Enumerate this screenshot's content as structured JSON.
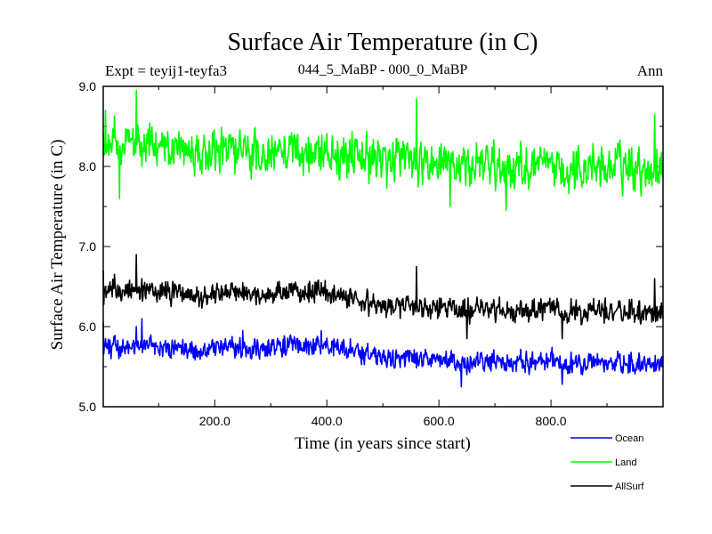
{
  "chart_data": {
    "type": "line",
    "title": "Surface Air Temperature (in C)",
    "subtitle_left": "Expt = teyij1-teyfa3",
    "subtitle_center": "044_5_MaBP - 000_0_MaBP",
    "subtitle_right": "Ann",
    "xlabel": "Time (in years since start)",
    "ylabel": "Surface Air Temperature (in C)",
    "xlim": [
      1,
      1000
    ],
    "ylim": [
      5.0,
      9.0
    ],
    "xticks": [
      200,
      400,
      600,
      800
    ],
    "xtick_labels": [
      "200.0",
      "400.0",
      "600.0",
      "800.0"
    ],
    "yticks": [
      5.0,
      6.0,
      7.0,
      8.0,
      9.0
    ],
    "ytick_labels": [
      "5.0",
      "6.0",
      "7.0",
      "8.0",
      "9.0"
    ],
    "grid": false,
    "legend_position": "bottom-right",
    "series": [
      {
        "name": "Ocean",
        "color": "#0000ff",
        "mean": 5.65,
        "noise": 0.13,
        "key_points": [
          [
            1,
            6.05
          ],
          [
            5,
            5.85
          ],
          [
            15,
            5.6
          ],
          [
            60,
            6.0
          ],
          [
            70,
            6.1
          ],
          [
            250,
            5.95
          ],
          [
            390,
            5.95
          ],
          [
            640,
            5.25
          ],
          [
            650,
            5.4
          ],
          [
            820,
            5.28
          ],
          [
            1000,
            5.5
          ]
        ],
        "trend": [
          [
            1,
            5.75
          ],
          [
            250,
            5.72
          ],
          [
            390,
            5.78
          ],
          [
            500,
            5.6
          ],
          [
            700,
            5.55
          ],
          [
            1000,
            5.55
          ]
        ]
      },
      {
        "name": "Land",
        "color": "#00ff00",
        "mean": 8.15,
        "noise": 0.28,
        "key_points": [
          [
            1,
            8.4
          ],
          [
            5,
            8.7
          ],
          [
            60,
            8.95
          ],
          [
            70,
            8.0
          ],
          [
            30,
            7.6
          ],
          [
            560,
            8.85
          ],
          [
            620,
            7.5
          ],
          [
            720,
            7.45
          ],
          [
            985,
            8.65
          ],
          [
            1000,
            7.85
          ]
        ],
        "trend": [
          [
            1,
            8.25
          ],
          [
            200,
            8.2
          ],
          [
            400,
            8.15
          ],
          [
            600,
            8.0
          ],
          [
            800,
            8.0
          ],
          [
            1000,
            8.0
          ]
        ]
      },
      {
        "name": "AllSurf",
        "color": "#000000",
        "mean": 6.35,
        "noise": 0.15,
        "key_points": [
          [
            1,
            6.7
          ],
          [
            5,
            6.5
          ],
          [
            60,
            6.9
          ],
          [
            70,
            6.6
          ],
          [
            250,
            6.55
          ],
          [
            390,
            6.55
          ],
          [
            560,
            6.75
          ],
          [
            650,
            5.85
          ],
          [
            820,
            5.85
          ],
          [
            985,
            6.6
          ],
          [
            1000,
            6.1
          ]
        ],
        "trend": [
          [
            1,
            6.45
          ],
          [
            250,
            6.4
          ],
          [
            390,
            6.45
          ],
          [
            500,
            6.25
          ],
          [
            700,
            6.2
          ],
          [
            1000,
            6.2
          ]
        ]
      }
    ]
  }
}
